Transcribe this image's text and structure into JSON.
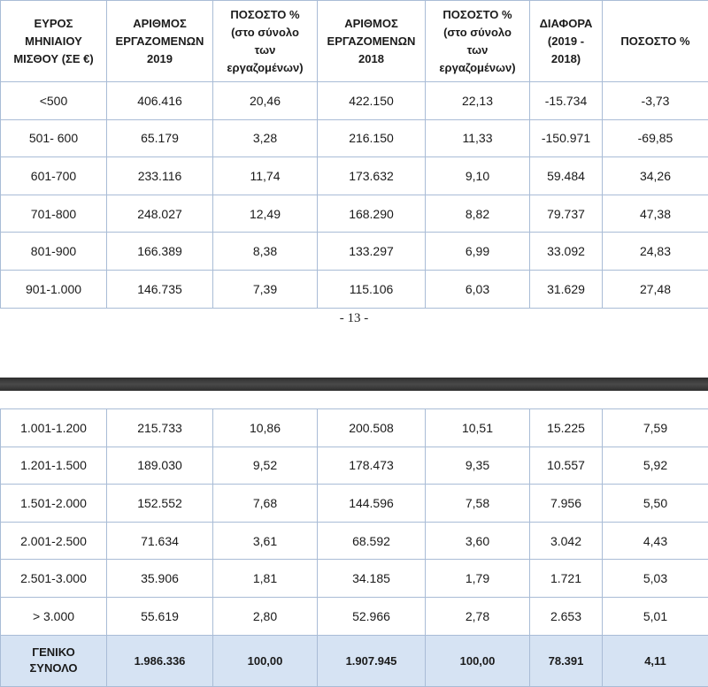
{
  "header": [
    {
      "line1": "ΕΥΡΟΣ",
      "line2": "ΜΗΝΙΑΙΟΥ",
      "line3": "ΜΙΣΘΟΥ (ΣΕ €)"
    },
    {
      "line1": "ΑΡΙΘΜΟΣ",
      "line2": "ΕΡΓΑΖΟΜΕΝΩΝ",
      "line3": "2019"
    },
    {
      "line1": "ΠΟΣΟΣΤΟ %",
      "line2": "(στο σύνολο",
      "line3": "των",
      "line4": "εργαζομένων)"
    },
    {
      "line1": "ΑΡΙΘΜΟΣ",
      "line2": "ΕΡΓΑΖΟΜΕΝΩΝ",
      "line3": "2018"
    },
    {
      "line1": "ΠΟΣΟΣΤΟ %",
      "line2": "(στο σύνολο",
      "line3": "των",
      "line4": "εργαζομένων)"
    },
    {
      "line1": "ΔΙΑΦΟΡΑ",
      "line2": "(2019 -",
      "line3": "2018)"
    },
    {
      "line1": "ΠΟΣΟΣΤΟ %"
    }
  ],
  "rows_page1": [
    [
      "<500",
      "406.416",
      "20,46",
      "422.150",
      "22,13",
      "-15.734",
      "-3,73"
    ],
    [
      "501- 600",
      "65.179",
      "3,28",
      "216.150",
      "11,33",
      "-150.971",
      "-69,85"
    ],
    [
      "601-700",
      "233.116",
      "11,74",
      "173.632",
      "9,10",
      "59.484",
      "34,26"
    ],
    [
      "701-800",
      "248.027",
      "12,49",
      "168.290",
      "8,82",
      "79.737",
      "47,38"
    ],
    [
      "801-900",
      "166.389",
      "8,38",
      "133.297",
      "6,99",
      "33.092",
      "24,83"
    ],
    [
      "901-1.000",
      "146.735",
      "7,39",
      "115.106",
      "6,03",
      "31.629",
      "27,48"
    ]
  ],
  "page_number": "- 13 -",
  "rows_page2": [
    [
      "1.001-1.200",
      "215.733",
      "10,86",
      "200.508",
      "10,51",
      "15.225",
      "7,59"
    ],
    [
      "1.201-1.500",
      "189.030",
      "9,52",
      "178.473",
      "9,35",
      "10.557",
      "5,92"
    ],
    [
      "1.501-2.000",
      "152.552",
      "7,68",
      "144.596",
      "7,58",
      "7.956",
      "5,50"
    ],
    [
      "2.001-2.500",
      "71.634",
      "3,61",
      "68.592",
      "3,60",
      "3.042",
      "4,43"
    ],
    [
      "2.501-3.000",
      "35.906",
      "1,81",
      "34.185",
      "1,79",
      "1.721",
      "5,03"
    ],
    [
      "> 3.000",
      "55.619",
      "2,80",
      "52.966",
      "2,78",
      "2.653",
      "5,01"
    ]
  ],
  "total": {
    "label_line1": "ΓΕΝΙΚΟ",
    "label_line2": "ΣΥΝΟΛΟ",
    "values": [
      "1.986.336",
      "100,00",
      "1.907.945",
      "100,00",
      "78.391",
      "4,11"
    ]
  },
  "colors": {
    "border": "#a9bcd6",
    "total_background": "#d6e3f3",
    "page_break": "#3a3a3a"
  }
}
